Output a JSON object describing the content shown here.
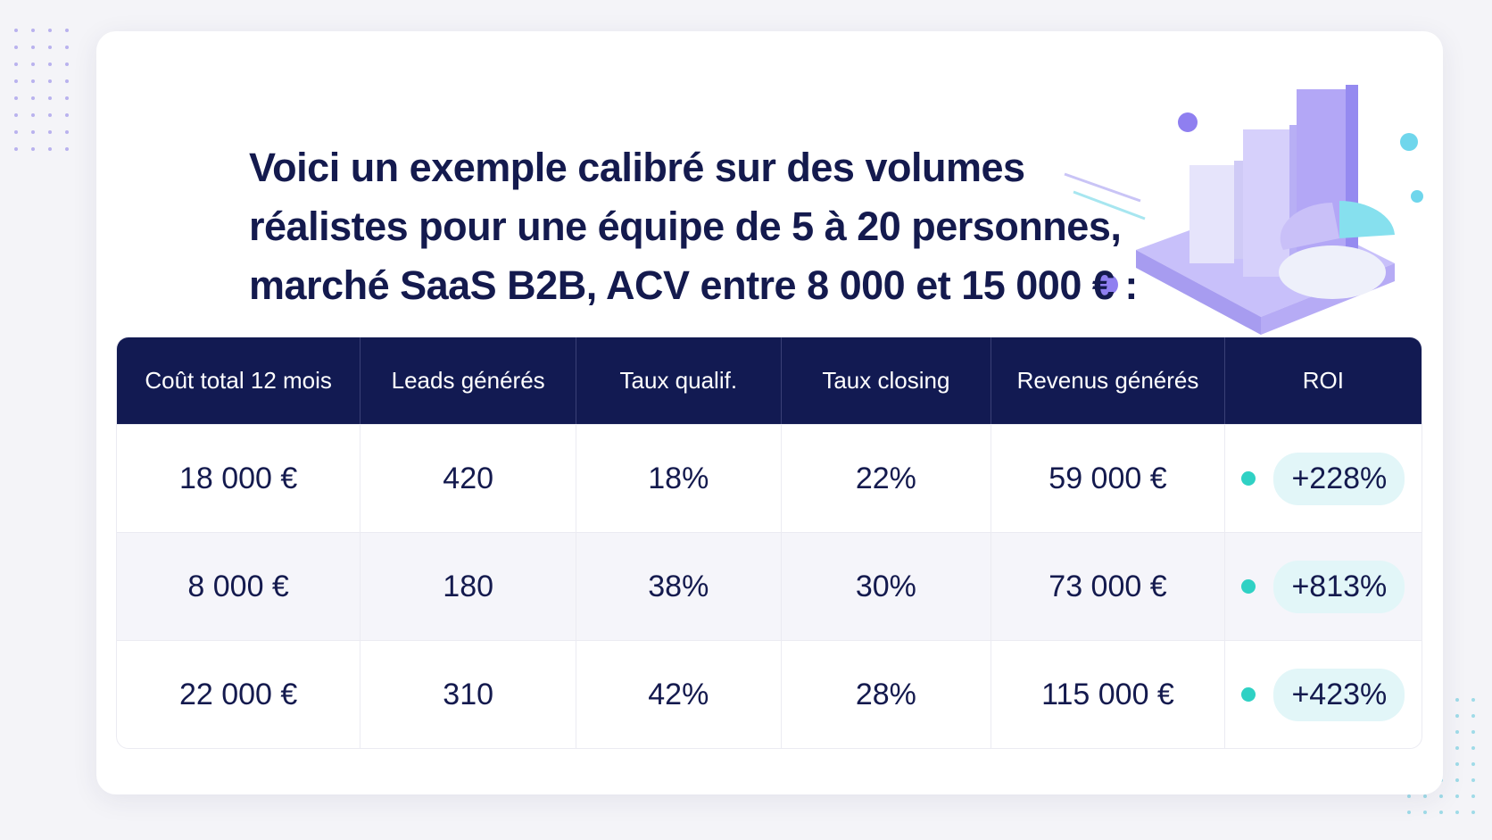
{
  "header": {
    "title": [
      "Voici un exemple calibré sur des volumes",
      "réalistes pour une équipe de 5 à 20 personnes,",
      "marché SaaS B2B, ACV entre 8 000 et 15 000 € :"
    ]
  },
  "table": {
    "columns": [
      "Coût total 12 mois",
      "Leads générés",
      "Taux qualif.",
      "Taux closing",
      "Revenus générés",
      "ROI"
    ],
    "rows": [
      [
        "18 000 €",
        "420",
        "18%",
        "22%",
        "59 000 €",
        "+228%"
      ],
      [
        "8 000 €",
        "180",
        "38%",
        "30%",
        "73 000 €",
        "+813%"
      ],
      [
        "22 000 €",
        "310",
        "42%",
        "28%",
        "115 000 €",
        "+423%"
      ]
    ]
  }
}
